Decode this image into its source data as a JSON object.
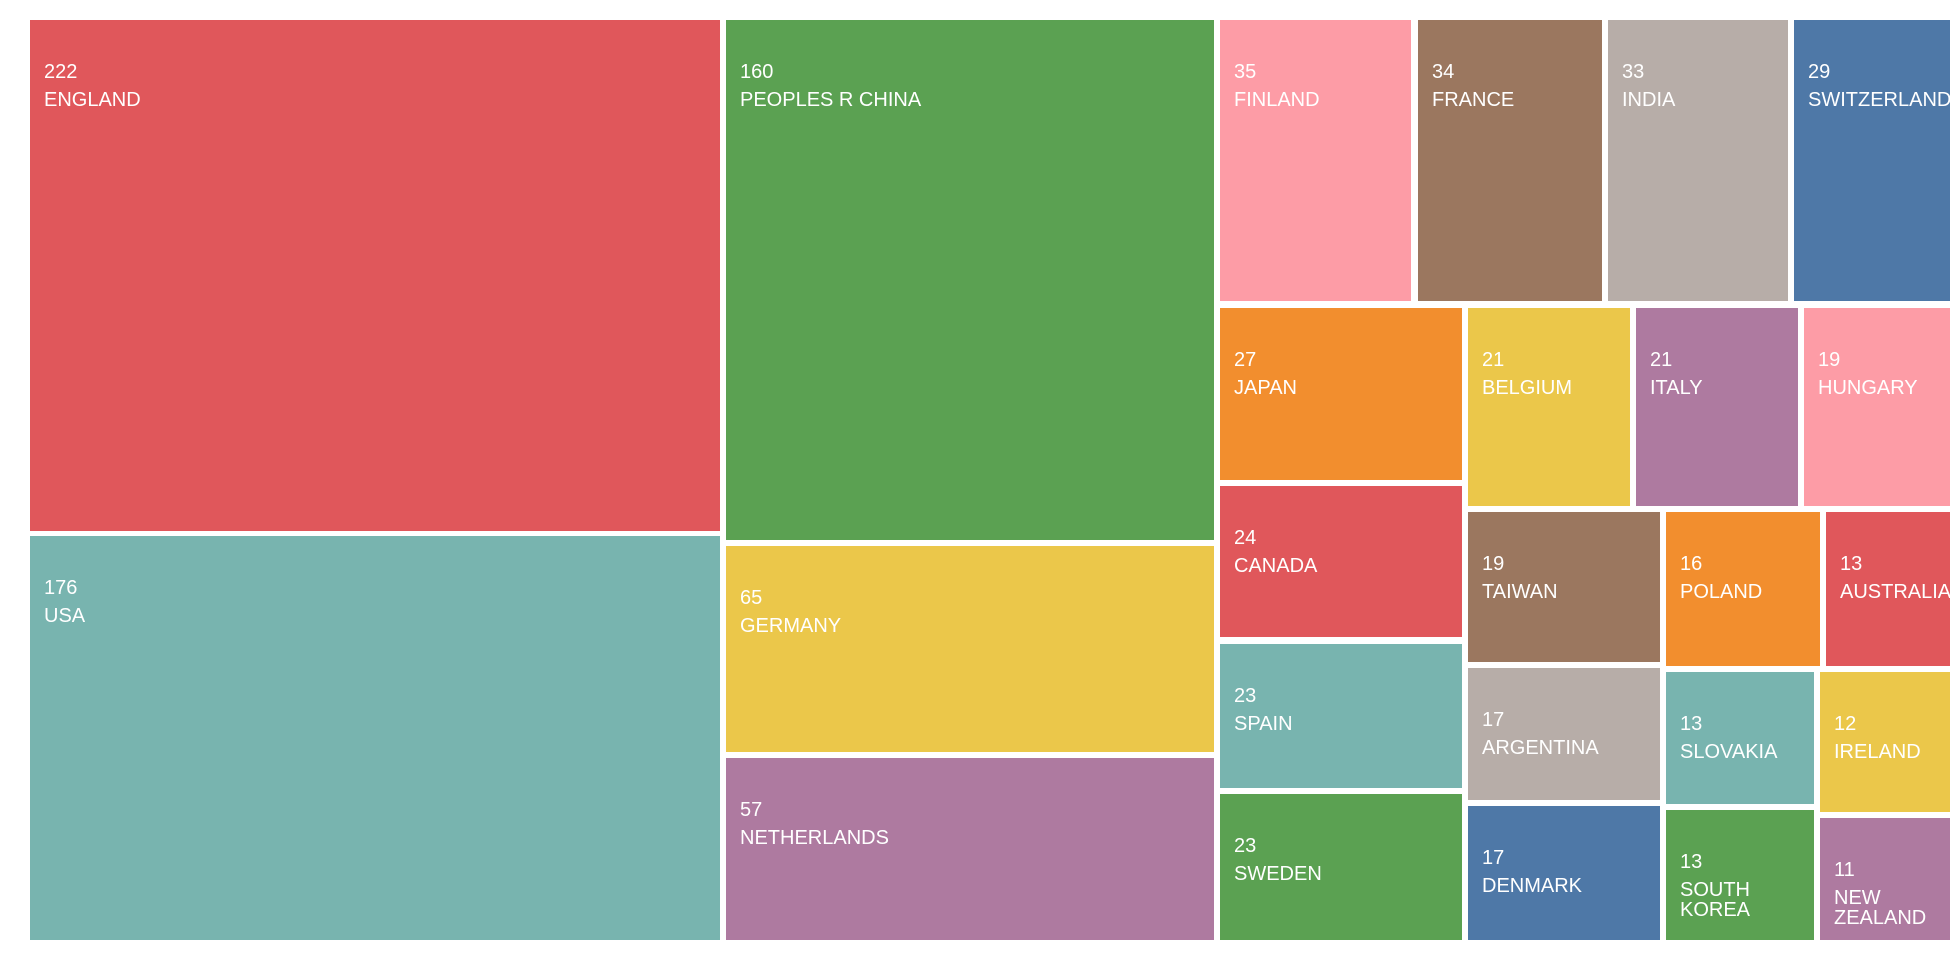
{
  "chart_data": {
    "type": "treemap",
    "title": "",
    "colors": {
      "red": "#e0575b",
      "teal": "#78b4af",
      "green": "#5ba152",
      "yellow": "#ebc74a",
      "purple": "#ae7aa0",
      "pink": "#fd9ca6",
      "brown": "#9b775f",
      "gray": "#b7ada8",
      "blue": "#4e78a7",
      "orange": "#f28e2e"
    },
    "items": [
      {
        "label": "ENGLAND",
        "value": 222,
        "color": "#e0575b"
      },
      {
        "label": "USA",
        "value": 176,
        "color": "#78b4af"
      },
      {
        "label": "PEOPLES R CHINA",
        "value": 160,
        "color": "#5ba152"
      },
      {
        "label": "GERMANY",
        "value": 65,
        "color": "#ebc74a"
      },
      {
        "label": "NETHERLANDS",
        "value": 57,
        "color": "#ae7aa0"
      },
      {
        "label": "FINLAND",
        "value": 35,
        "color": "#fd9ca6"
      },
      {
        "label": "FRANCE",
        "value": 34,
        "color": "#9b775f"
      },
      {
        "label": "INDIA",
        "value": 33,
        "color": "#b7ada8"
      },
      {
        "label": "SWITZERLAND",
        "value": 29,
        "color": "#4e78a7"
      },
      {
        "label": "JAPAN",
        "value": 27,
        "color": "#f28e2e"
      },
      {
        "label": "BELGIUM",
        "value": 21,
        "color": "#ebc74a"
      },
      {
        "label": "ITALY",
        "value": 21,
        "color": "#ae7aa0"
      },
      {
        "label": "HUNGARY",
        "value": 19,
        "color": "#fd9ca6"
      },
      {
        "label": "CANADA",
        "value": 24,
        "color": "#e0575b"
      },
      {
        "label": "SPAIN",
        "value": 23,
        "color": "#78b4af"
      },
      {
        "label": "SWEDEN",
        "value": 23,
        "color": "#5ba152"
      },
      {
        "label": "TAIWAN",
        "value": 19,
        "color": "#9b775f"
      },
      {
        "label": "ARGENTINA",
        "value": 17,
        "color": "#b7ada8"
      },
      {
        "label": "DENMARK",
        "value": 17,
        "color": "#4e78a7"
      },
      {
        "label": "POLAND",
        "value": 16,
        "color": "#f28e2e"
      },
      {
        "label": "AUSTRALIA",
        "value": 13,
        "color": "#e0575b"
      },
      {
        "label": "SLOVAKIA",
        "value": 13,
        "color": "#78b4af"
      },
      {
        "label": "IRELAND",
        "value": 12,
        "color": "#ebc74a"
      },
      {
        "label": "SOUTH KOREA",
        "value": 13,
        "color": "#5ba152"
      },
      {
        "label": "NEW ZEALAND",
        "value": 11,
        "color": "#ae7aa0"
      }
    ]
  }
}
